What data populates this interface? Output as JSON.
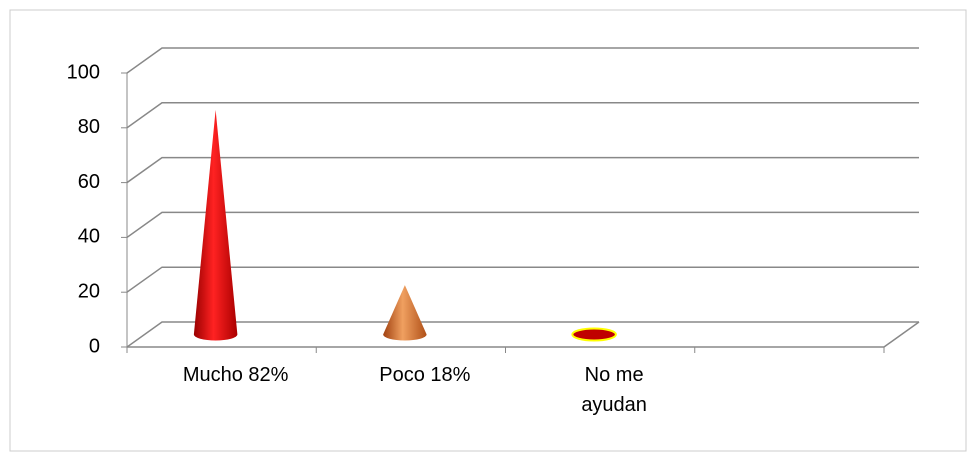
{
  "chart_data": {
    "type": "cone",
    "categories": [
      "Mucho 82%",
      "Poco 18%",
      "No me ayudan",
      null
    ],
    "values": [
      82,
      18,
      0,
      null
    ],
    "colors": [
      "#e00000",
      "#e07020",
      "#c00000",
      null
    ],
    "ylim": [
      0,
      100
    ],
    "yticks": [
      0,
      20,
      40,
      60,
      80,
      100
    ],
    "grid": true
  }
}
